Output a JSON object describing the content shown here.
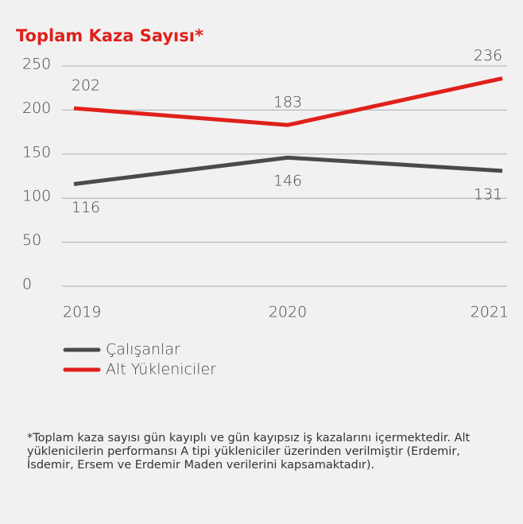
{
  "chart_data": {
    "type": "line",
    "title": "Toplam Kaza Sayısı*",
    "categories": [
      "2019",
      "2020",
      "2021"
    ],
    "series": [
      {
        "name": "Çalışanlar",
        "color": "#4a4a4c",
        "values": [
          116,
          146,
          131
        ]
      },
      {
        "name": "Alt Yükleniciler",
        "color": "#e0201b",
        "values": [
          202,
          183,
          236
        ]
      }
    ],
    "ylim": [
      0,
      250
    ],
    "yticks": [
      0,
      50,
      100,
      150,
      200,
      250
    ],
    "grid": true,
    "footnote": "*Toplam kaza sayısı gün kayıplı ve gün kayıpsız iş kazalarını içermektedir. Alt yüklenicilerin performansı A tipi yükleniciler üzerinden verilmiştir (Erdemir, İsdemir, Ersem ve Erdemir Maden verilerini kapsamaktadır)."
  }
}
